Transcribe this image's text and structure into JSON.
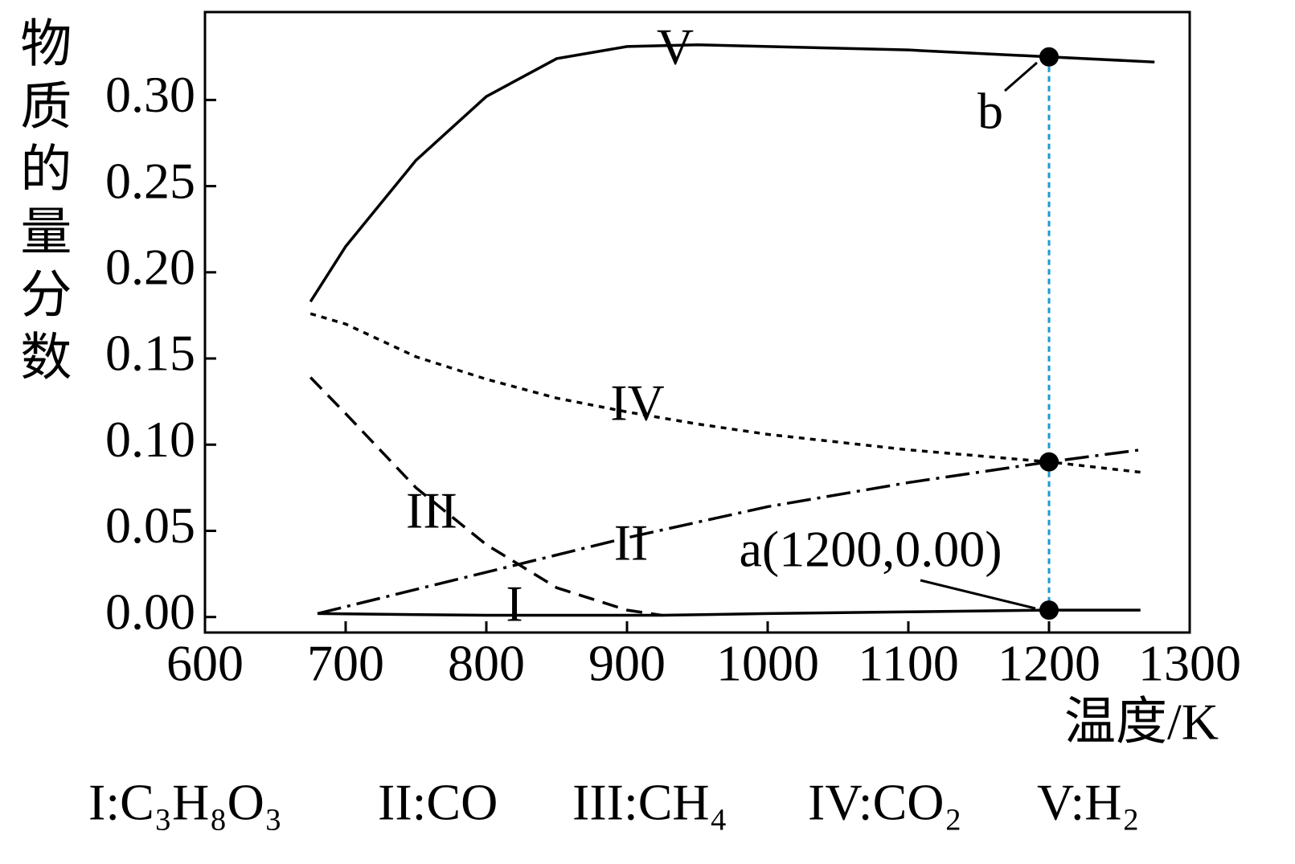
{
  "chart_data": {
    "type": "line",
    "y_label": "物质的量分数",
    "x_label": "温度/K",
    "xlim": [
      600,
      1300
    ],
    "xticks": [
      600,
      700,
      800,
      900,
      1000,
      1100,
      1200,
      1300
    ],
    "ylim": [
      -0.009,
      0.351
    ],
    "yticks": [
      {
        "value": 0,
        "label": "0.00"
      },
      0.05,
      {
        "value": 0.1,
        "label": "0.10"
      },
      0.15,
      {
        "value": 0.2,
        "label": "0.20"
      },
      0.25,
      {
        "value": 0.3,
        "label": "0.30"
      }
    ],
    "series": [
      {
        "name": "I:C₃H₈O₃",
        "label": "I",
        "color": "#000000",
        "dash": "solid",
        "x": [
          680,
          800,
          925,
          1000,
          1100,
          1200,
          1265
        ],
        "values": [
          0.002,
          0.001,
          0.001,
          0.002,
          0.003,
          0.004,
          0.004
        ]
      },
      {
        "name": "II:CO",
        "label": "II",
        "color": "#000000",
        "dash": "dashdot",
        "x": [
          680,
          700,
          800,
          900,
          1000,
          1100,
          1200,
          1265
        ],
        "values": [
          0.002,
          0.006,
          0.026,
          0.046,
          0.064,
          0.078,
          0.09,
          0.097
        ]
      },
      {
        "name": "III:CH₄",
        "label": "III",
        "color": "#000000",
        "dash": "dashed",
        "x": [
          675,
          700,
          750,
          800,
          850,
          900,
          925
        ],
        "values": [
          0.139,
          0.118,
          0.075,
          0.042,
          0.017,
          0.004,
          0.001
        ]
      },
      {
        "name": "IV:CO₂",
        "label": "IV",
        "color": "#000000",
        "dash": "dotted",
        "x": [
          675,
          700,
          750,
          800,
          850,
          900,
          950,
          1000,
          1100,
          1200,
          1265
        ],
        "values": [
          0.176,
          0.17,
          0.151,
          0.138,
          0.127,
          0.119,
          0.112,
          0.106,
          0.097,
          0.09,
          0.084
        ]
      },
      {
        "name": "V:H₂",
        "label": "V",
        "color": "#000000",
        "dash": "solid",
        "x": [
          675,
          700,
          750,
          800,
          850,
          900,
          950,
          1000,
          1100,
          1200,
          1275
        ],
        "values": [
          0.183,
          0.215,
          0.265,
          0.302,
          0.324,
          0.331,
          0.332,
          0.331,
          0.329,
          0.325,
          0.322
        ]
      }
    ],
    "points": [
      {
        "name": "b",
        "x": 1200,
        "y": 0.325
      },
      {
        "x": 1200,
        "y": 0.09
      },
      {
        "name": "a(1200,0.00)",
        "x": 1200,
        "y": 0.004
      }
    ],
    "reference_line_color": "#1a9ad6"
  }
}
